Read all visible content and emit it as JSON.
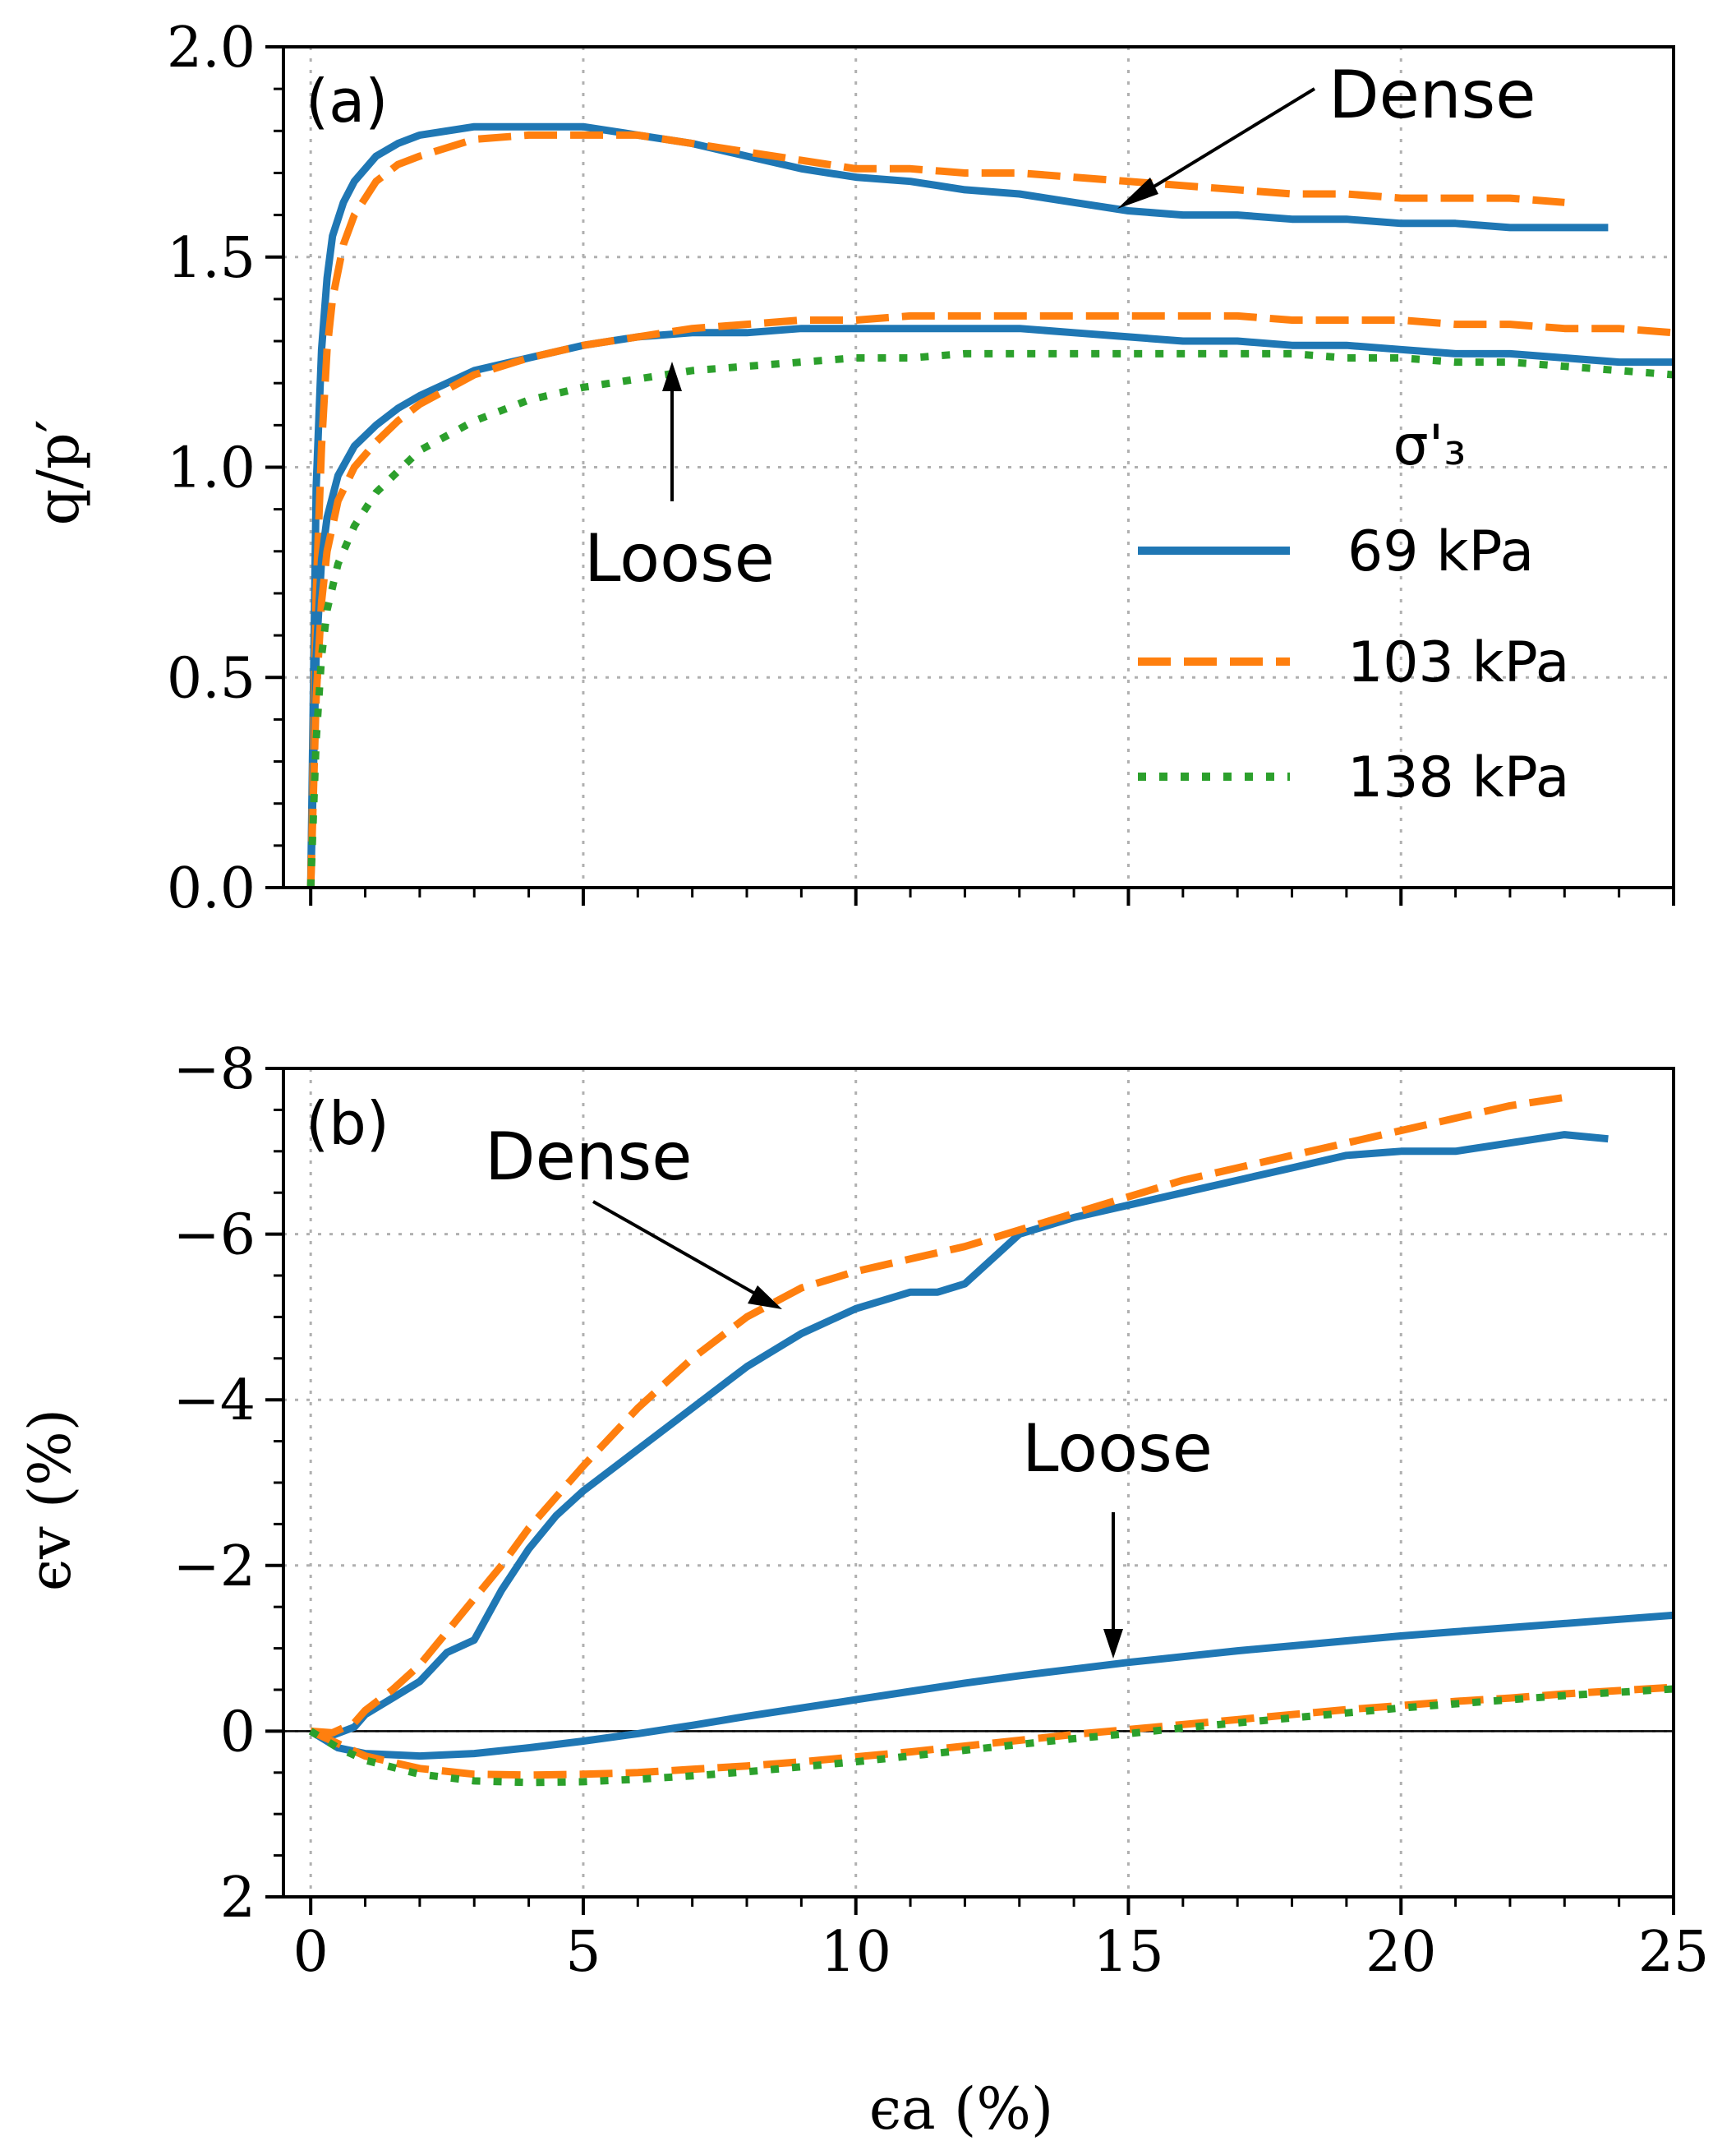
{
  "chart_data": [
    {
      "panel_label": "(a)",
      "type": "line",
      "ylabel": "q/p′",
      "xlabel": "",
      "xlim": [
        -0.5,
        25
      ],
      "ylim": [
        0.0,
        2.0
      ],
      "xticks": [
        0,
        5,
        10,
        15,
        20,
        25
      ],
      "yticks": [
        0.0,
        0.5,
        1.0,
        1.5,
        2.0
      ],
      "ytick_labels": [
        "0.0",
        "0.5",
        "1.0",
        "1.5",
        "2.0"
      ],
      "grid": true,
      "legend": {
        "title": "σ'₃",
        "placement": "lower-right",
        "entries": [
          "69 kPa",
          "103 kPa",
          "138 kPa"
        ]
      },
      "annotations": [
        {
          "text": "Dense",
          "points_to": [
            15,
            1.63
          ]
        },
        {
          "text": "Loose",
          "points_to": [
            6.6,
            1.32
          ]
        }
      ],
      "series": [
        {
          "name": "69 kPa",
          "state": "Dense",
          "style": "solid",
          "color": "#1f77b4",
          "x": [
            0,
            0.1,
            0.2,
            0.3,
            0.4,
            0.6,
            0.8,
            1.2,
            1.6,
            2,
            3,
            4,
            5,
            6,
            7,
            8,
            9,
            10,
            11,
            12,
            13,
            14,
            15,
            16,
            17,
            18,
            19,
            20,
            21,
            22,
            23,
            23.8
          ],
          "y": [
            0,
            0.95,
            1.28,
            1.45,
            1.55,
            1.63,
            1.68,
            1.74,
            1.77,
            1.79,
            1.81,
            1.81,
            1.81,
            1.79,
            1.77,
            1.74,
            1.71,
            1.69,
            1.68,
            1.66,
            1.65,
            1.63,
            1.61,
            1.6,
            1.6,
            1.59,
            1.59,
            1.58,
            1.58,
            1.57,
            1.57,
            1.57
          ]
        },
        {
          "name": "103 kPa",
          "state": "Dense",
          "style": "dashed",
          "color": "#ff7f0e",
          "x": [
            0,
            0.1,
            0.2,
            0.3,
            0.4,
            0.6,
            0.8,
            1.2,
            1.6,
            2,
            3,
            4,
            5,
            6,
            7,
            8,
            9,
            10,
            11,
            12,
            13,
            14,
            15,
            16,
            17,
            18,
            19,
            20,
            21,
            22,
            23
          ],
          "y": [
            0,
            0.7,
            1.05,
            1.28,
            1.4,
            1.53,
            1.6,
            1.68,
            1.72,
            1.74,
            1.78,
            1.79,
            1.79,
            1.79,
            1.77,
            1.75,
            1.73,
            1.71,
            1.71,
            1.7,
            1.7,
            1.69,
            1.68,
            1.67,
            1.66,
            1.65,
            1.65,
            1.64,
            1.64,
            1.64,
            1.63
          ]
        },
        {
          "name": "69 kPa",
          "state": "Loose",
          "style": "solid",
          "color": "#1f77b4",
          "x": [
            0,
            0.1,
            0.2,
            0.3,
            0.5,
            0.8,
            1.2,
            1.6,
            2,
            3,
            4,
            5,
            6,
            7,
            8,
            9,
            10,
            11,
            12,
            13,
            14,
            15,
            16,
            17,
            18,
            19,
            20,
            21,
            22,
            23,
            24,
            25
          ],
          "y": [
            0,
            0.55,
            0.78,
            0.88,
            0.98,
            1.05,
            1.1,
            1.14,
            1.17,
            1.23,
            1.26,
            1.29,
            1.31,
            1.32,
            1.32,
            1.33,
            1.33,
            1.33,
            1.33,
            1.33,
            1.32,
            1.31,
            1.3,
            1.3,
            1.29,
            1.29,
            1.28,
            1.27,
            1.27,
            1.26,
            1.25,
            1.25
          ]
        },
        {
          "name": "103 kPa",
          "state": "Loose",
          "style": "dashed",
          "color": "#ff7f0e",
          "x": [
            0,
            0.1,
            0.2,
            0.3,
            0.5,
            0.8,
            1.2,
            1.6,
            2,
            3,
            4,
            5,
            6,
            7,
            8,
            9,
            10,
            11,
            12,
            13,
            14,
            15,
            16,
            17,
            18,
            19,
            20,
            21,
            22,
            23,
            24,
            25
          ],
          "y": [
            0,
            0.45,
            0.68,
            0.8,
            0.92,
            1.0,
            1.06,
            1.11,
            1.15,
            1.22,
            1.26,
            1.29,
            1.31,
            1.33,
            1.34,
            1.35,
            1.35,
            1.36,
            1.36,
            1.36,
            1.36,
            1.36,
            1.36,
            1.36,
            1.35,
            1.35,
            1.35,
            1.34,
            1.34,
            1.33,
            1.33,
            1.32
          ]
        },
        {
          "name": "138 kPa",
          "state": "Loose",
          "style": "dotted",
          "color": "#2ca02c",
          "x": [
            0,
            0.1,
            0.2,
            0.3,
            0.5,
            0.8,
            1.2,
            1.6,
            2,
            3,
            4,
            5,
            6,
            7,
            8,
            9,
            10,
            11,
            12,
            13,
            14,
            15,
            16,
            17,
            18,
            19,
            20,
            21,
            22,
            23,
            24,
            25
          ],
          "y": [
            0,
            0.35,
            0.55,
            0.66,
            0.77,
            0.86,
            0.94,
            0.99,
            1.04,
            1.11,
            1.16,
            1.19,
            1.21,
            1.23,
            1.24,
            1.25,
            1.26,
            1.26,
            1.27,
            1.27,
            1.27,
            1.27,
            1.27,
            1.27,
            1.27,
            1.26,
            1.26,
            1.25,
            1.25,
            1.24,
            1.23,
            1.22
          ]
        }
      ]
    },
    {
      "panel_label": "(b)",
      "type": "line",
      "ylabel": "ϵv (%)",
      "xlabel": "ϵa (%)",
      "xlim": [
        -0.5,
        25
      ],
      "ylim": [
        2,
        -8
      ],
      "xticks": [
        0,
        5,
        10,
        15,
        20,
        25
      ],
      "xtick_labels": [
        "0",
        "5",
        "10",
        "15",
        "20",
        "25"
      ],
      "yticks": [
        2,
        0,
        -2,
        -4,
        -6,
        -8
      ],
      "ytick_labels": [
        "2",
        "0",
        "−2",
        "−4",
        "−6",
        "−8"
      ],
      "grid": true,
      "zero_line": true,
      "annotations": [
        {
          "text": "Dense",
          "points_to": [
            8.7,
            -5.2
          ]
        },
        {
          "text": "Loose",
          "points_to": [
            14.5,
            -0.85
          ]
        }
      ],
      "series": [
        {
          "name": "69 kPa",
          "state": "Dense",
          "style": "solid",
          "color": "#1f77b4",
          "x": [
            0,
            0.4,
            0.8,
            1,
            1.5,
            2,
            2.5,
            3,
            3.5,
            4,
            4.5,
            5,
            6,
            7,
            8,
            9,
            10,
            11,
            11.5,
            12,
            12.5,
            13,
            14,
            15,
            16,
            17,
            18,
            19,
            20,
            21,
            22,
            23,
            23.8
          ],
          "y": [
            0,
            0.05,
            -0.05,
            -0.2,
            -0.4,
            -0.6,
            -0.95,
            -1.1,
            -1.7,
            -2.2,
            -2.6,
            -2.9,
            -3.4,
            -3.9,
            -4.4,
            -4.8,
            -5.1,
            -5.3,
            -5.3,
            -5.4,
            -5.7,
            -6.0,
            -6.2,
            -6.35,
            -6.5,
            -6.65,
            -6.8,
            -6.95,
            -7.0,
            -7.0,
            -7.1,
            -7.2,
            -7.15
          ]
        },
        {
          "name": "103 kPa",
          "state": "Dense",
          "style": "dashed",
          "color": "#ff7f0e",
          "x": [
            0,
            0.4,
            0.8,
            1,
            1.5,
            2,
            2.5,
            3,
            3.5,
            4,
            5,
            6,
            7,
            8,
            9,
            10,
            11,
            12,
            13,
            14,
            15,
            16,
            17,
            18,
            19,
            20,
            21,
            22,
            23
          ],
          "y": [
            0,
            0.02,
            -0.1,
            -0.25,
            -0.5,
            -0.8,
            -1.2,
            -1.6,
            -2.0,
            -2.45,
            -3.2,
            -3.9,
            -4.5,
            -5.0,
            -5.35,
            -5.55,
            -5.7,
            -5.85,
            -6.05,
            -6.25,
            -6.45,
            -6.65,
            -6.8,
            -6.95,
            -7.1,
            -7.25,
            -7.4,
            -7.55,
            -7.65
          ]
        },
        {
          "name": "69 kPa",
          "state": "Loose",
          "style": "solid",
          "color": "#1f77b4",
          "x": [
            0,
            0.5,
            1,
            2,
            3,
            4,
            5,
            6,
            7,
            8,
            9,
            10,
            11,
            12,
            13,
            14,
            15,
            16,
            17,
            18,
            19,
            20,
            21,
            22,
            23,
            24,
            25
          ],
          "y": [
            0,
            0.2,
            0.27,
            0.3,
            0.27,
            0.2,
            0.12,
            0.03,
            -0.07,
            -0.18,
            -0.28,
            -0.38,
            -0.48,
            -0.58,
            -0.67,
            -0.75,
            -0.83,
            -0.9,
            -0.97,
            -1.03,
            -1.09,
            -1.15,
            -1.2,
            -1.25,
            -1.3,
            -1.35,
            -1.4
          ]
        },
        {
          "name": "103 kPa",
          "state": "Loose",
          "style": "dashed",
          "color": "#ff7f0e",
          "x": [
            0,
            0.5,
            1,
            2,
            3,
            4,
            5,
            6,
            7,
            8,
            9,
            10,
            11,
            12,
            13,
            14,
            15,
            16,
            17,
            18,
            19,
            20,
            21,
            22,
            23,
            24,
            25
          ],
          "y": [
            0,
            0.15,
            0.3,
            0.45,
            0.52,
            0.53,
            0.52,
            0.5,
            0.46,
            0.42,
            0.37,
            0.31,
            0.25,
            0.18,
            0.11,
            0.04,
            -0.02,
            -0.08,
            -0.14,
            -0.2,
            -0.26,
            -0.31,
            -0.36,
            -0.4,
            -0.45,
            -0.49,
            -0.53
          ]
        },
        {
          "name": "138 kPa",
          "state": "Loose",
          "style": "dotted",
          "color": "#2ca02c",
          "x": [
            0,
            0.5,
            1,
            2,
            3,
            4,
            5,
            6,
            7,
            8,
            9,
            10,
            11,
            12,
            13,
            14,
            15,
            16,
            17,
            18,
            19,
            20,
            21,
            22,
            23,
            24,
            25
          ],
          "y": [
            0,
            0.2,
            0.35,
            0.52,
            0.6,
            0.62,
            0.61,
            0.58,
            0.54,
            0.49,
            0.43,
            0.37,
            0.3,
            0.23,
            0.16,
            0.09,
            0.03,
            -0.04,
            -0.1,
            -0.16,
            -0.22,
            -0.28,
            -0.33,
            -0.38,
            -0.43,
            -0.47,
            -0.51
          ]
        }
      ]
    }
  ]
}
